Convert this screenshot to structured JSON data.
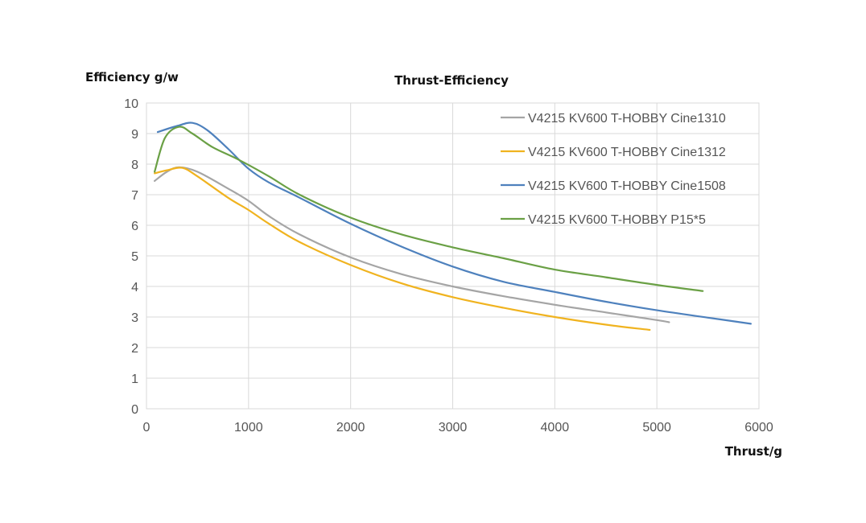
{
  "chart_data": {
    "type": "line",
    "title": "Thrust-Efficiency",
    "xlabel": "Thrust/g",
    "ylabel": "Efficiency g/w",
    "xlim": [
      0,
      6000
    ],
    "ylim": [
      0,
      10
    ],
    "x_ticks": [
      "0",
      "1000",
      "2000",
      "3000",
      "4000",
      "5000",
      "6000"
    ],
    "y_ticks": [
      "0",
      "1",
      "2",
      "3",
      "4",
      "5",
      "6",
      "7",
      "8",
      "9",
      "10"
    ],
    "grid": true,
    "legend_position": "top-right",
    "series": [
      {
        "name": "V4215 KV600 T-HOBBY Cine1310",
        "color": "#a5a5a5",
        "x": [
          80,
          200,
          320,
          500,
          800,
          1000,
          1200,
          1500,
          2000,
          2500,
          3000,
          3500,
          4000,
          4500,
          5000,
          5120
        ],
        "y": [
          7.45,
          7.75,
          7.9,
          7.75,
          7.2,
          6.8,
          6.3,
          5.7,
          4.95,
          4.4,
          4.0,
          3.68,
          3.4,
          3.15,
          2.9,
          2.83
        ]
      },
      {
        "name": "V4215 KV600 T-HOBBY Cine1312",
        "color": "#f0b31f",
        "x": [
          80,
          200,
          350,
          500,
          800,
          1000,
          1200,
          1500,
          2000,
          2500,
          3000,
          3500,
          4000,
          4500,
          4930
        ],
        "y": [
          7.7,
          7.8,
          7.88,
          7.6,
          6.9,
          6.5,
          6.05,
          5.45,
          4.7,
          4.1,
          3.65,
          3.3,
          3.0,
          2.75,
          2.58
        ]
      },
      {
        "name": "V4215 KV600 T-HOBBY Cine1508",
        "color": "#4e81bd",
        "x": [
          110,
          300,
          450,
          600,
          800,
          1000,
          1200,
          1500,
          2000,
          2500,
          3000,
          3500,
          4000,
          4500,
          5000,
          5500,
          5920
        ],
        "y": [
          9.05,
          9.25,
          9.35,
          9.1,
          8.5,
          7.85,
          7.4,
          6.9,
          6.05,
          5.3,
          4.65,
          4.15,
          3.82,
          3.5,
          3.22,
          2.98,
          2.78
        ]
      },
      {
        "name": "V4215 KV600 T-HOBBY P15*5",
        "color": "#6aa045",
        "x": [
          80,
          180,
          320,
          450,
          650,
          900,
          1200,
          1500,
          2000,
          2500,
          3000,
          3500,
          4000,
          4500,
          5000,
          5450
        ],
        "y": [
          7.75,
          8.85,
          9.22,
          9.0,
          8.55,
          8.15,
          7.6,
          7.0,
          6.25,
          5.7,
          5.28,
          4.92,
          4.55,
          4.3,
          4.05,
          3.85
        ]
      }
    ]
  }
}
